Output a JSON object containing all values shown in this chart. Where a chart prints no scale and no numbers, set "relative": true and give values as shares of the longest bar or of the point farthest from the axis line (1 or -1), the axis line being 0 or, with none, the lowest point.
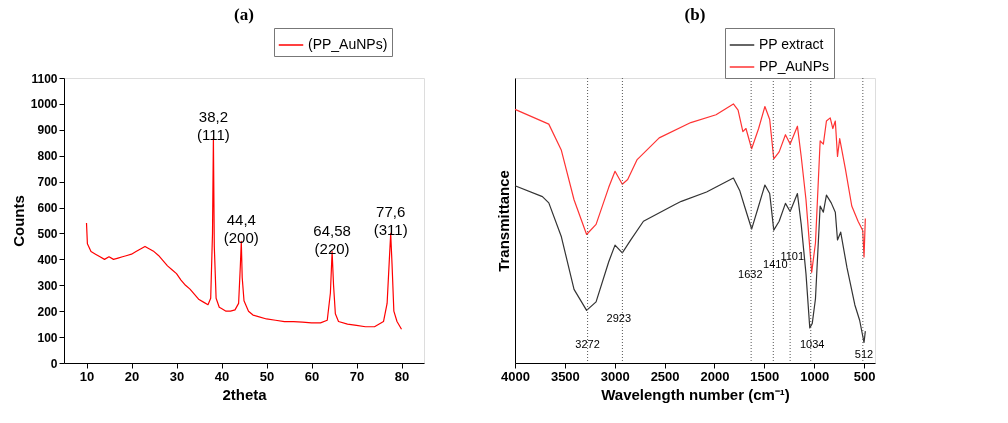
{
  "chart_data": [
    {
      "type": "line",
      "title": "(a)",
      "xlabel": "2theta",
      "ylabel": "Counts",
      "xlim": [
        5,
        85
      ],
      "xticks": [
        10,
        20,
        30,
        40,
        50,
        60,
        70,
        80
      ],
      "ylim": [
        0,
        1100
      ],
      "yticks": [
        0,
        100,
        200,
        300,
        400,
        500,
        600,
        700,
        800,
        900,
        1000,
        1100
      ],
      "grid": false,
      "legend": "top right",
      "x": [
        10,
        10.2,
        11,
        12,
        13,
        14,
        15,
        16,
        17,
        18,
        19,
        20,
        21,
        22,
        23,
        24,
        25,
        26,
        27,
        28,
        29,
        30,
        31,
        32,
        33,
        34,
        35,
        36,
        37,
        37.6,
        38.0,
        38.2,
        38.4,
        38.8,
        39.5,
        40,
        41,
        42,
        43,
        43.8,
        44.2,
        44.4,
        44.6,
        45,
        46,
        47,
        48,
        50,
        52,
        54,
        56,
        58,
        60,
        62,
        63.5,
        64.2,
        64.58,
        64.9,
        65.3,
        66,
        68,
        70,
        72,
        74,
        76,
        76.8,
        77.3,
        77.6,
        77.9,
        78.3,
        79,
        80
      ],
      "series": [
        {
          "name": "(PP_AuNPs)",
          "color": "#ff0000",
          "values": [
            540,
            460,
            430,
            420,
            410,
            400,
            410,
            400,
            405,
            410,
            415,
            420,
            430,
            440,
            450,
            440,
            430,
            415,
            395,
            375,
            360,
            345,
            320,
            300,
            285,
            265,
            245,
            235,
            225,
            250,
            500,
            870,
            450,
            250,
            215,
            210,
            200,
            200,
            205,
            230,
            380,
            470,
            330,
            240,
            200,
            185,
            180,
            170,
            165,
            160,
            160,
            158,
            155,
            155,
            165,
            270,
            430,
            300,
            190,
            160,
            150,
            145,
            140,
            140,
            160,
            230,
            400,
            500,
            380,
            200,
            160,
            130
          ]
        }
      ],
      "annotations": [
        {
          "text": "38,2\n(111)",
          "x": 38.2,
          "y": 870
        },
        {
          "text": "44,4\n(200)",
          "x": 44.4,
          "y": 470
        },
        {
          "text": "64,58\n(220)",
          "x": 64.58,
          "y": 430
        },
        {
          "text": "77,6\n(311)",
          "x": 77.6,
          "y": 500
        }
      ]
    },
    {
      "type": "line",
      "title": "(b)",
      "xlabel": "Wavelength number (cm⁻¹)",
      "ylabel": "Transmittance",
      "relative": true,
      "xlim": [
        4000,
        390
      ],
      "xticks": [
        4000,
        3500,
        3000,
        2500,
        2000,
        1500,
        1000,
        500
      ],
      "grid": false,
      "legend": "top right",
      "series": [
        {
          "name": "PP extract",
          "color": "#333333",
          "x": [
            4000,
            3725,
            3661,
            3535,
            3408,
            3282,
            3187,
            3060,
            2997,
            2924,
            2839,
            2712,
            2396,
            2332,
            2079,
            1810,
            1747,
            1699,
            1627,
            1557,
            1494,
            1446,
            1405,
            1351,
            1288,
            1241,
            1168,
            1130,
            1082,
            1044,
            1019,
            987,
            940,
            908,
            877,
            829,
            788,
            766,
            734,
            671,
            592,
            544,
            500,
            487
          ],
          "values": [
            0.684,
            0.642,
            0.618,
            0.487,
            0.284,
            0.203,
            0.236,
            0.391,
            0.455,
            0.425,
            0.475,
            0.547,
            0.612,
            0.624,
            0.66,
            0.714,
            0.666,
            0.606,
            0.517,
            0.606,
            0.687,
            0.654,
            0.513,
            0.547,
            0.616,
            0.585,
            0.654,
            0.535,
            0.344,
            0.135,
            0.153,
            0.248,
            0.606,
            0.582,
            0.648,
            0.618,
            0.582,
            0.475,
            0.505,
            0.368,
            0.224,
            0.165,
            0.079,
            0.123
          ]
        },
        {
          "name": "PP_AuNPs",
          "color": "#ff3333",
          "x": [
            4000,
            3661,
            3535,
            3408,
            3282,
            3187,
            3060,
            2997,
            2924,
            2870,
            2775,
            2554,
            2237,
            1984,
            1810,
            1763,
            1715,
            1684,
            1627,
            1557,
            1494,
            1446,
            1405,
            1351,
            1288,
            1241,
            1168,
            1130,
            1082,
            1025,
            987,
            940,
            908,
            877,
            839,
            813,
            788,
            766,
            744,
            687,
            623,
            560,
            513,
            500,
            487
          ],
          "values": [
            0.979,
            0.922,
            0.821,
            0.63,
            0.496,
            0.535,
            0.678,
            0.74,
            0.69,
            0.708,
            0.785,
            0.869,
            0.928,
            0.958,
            1.0,
            0.976,
            0.893,
            0.905,
            0.827,
            0.905,
            0.99,
            0.94,
            0.788,
            0.815,
            0.881,
            0.845,
            0.914,
            0.797,
            0.63,
            0.35,
            0.463,
            0.857,
            0.845,
            0.934,
            0.946,
            0.905,
            0.934,
            0.797,
            0.866,
            0.749,
            0.606,
            0.547,
            0.511,
            0.409,
            0.558
          ]
        }
      ],
      "ref_lines": [
        {
          "axis": "x",
          "value": 3272,
          "line_style": "dotted",
          "color": "#555555"
        },
        {
          "axis": "x",
          "value": 2923,
          "line_style": "dotted",
          "color": "#555555"
        },
        {
          "axis": "x",
          "value": 1632,
          "line_style": "dotted",
          "color": "#555555"
        },
        {
          "axis": "x",
          "value": 1410,
          "line_style": "dotted",
          "color": "#555555"
        },
        {
          "axis": "x",
          "value": 1241,
          "line_style": "dotted",
          "color": "#555555"
        },
        {
          "axis": "x",
          "value": 1034,
          "line_style": "dotted",
          "color": "#555555"
        },
        {
          "axis": "x",
          "value": 512,
          "line_style": "dotted",
          "color": "#555555"
        }
      ],
      "annotations": [
        {
          "text": "3272",
          "x": 3272,
          "y": 0.07
        },
        {
          "text": "2923",
          "x": 2959,
          "y": 0.17
        },
        {
          "text": "1632",
          "x": 1640,
          "y": 0.34
        },
        {
          "text": "1410",
          "x": 1390,
          "y": 0.38
        },
        {
          "text": "1101",
          "x": 1220,
          "y": 0.41
        },
        {
          "text": "1034",
          "x": 1020,
          "y": 0.07
        },
        {
          "text": "512",
          "x": 500,
          "y": 0.03
        }
      ]
    }
  ]
}
